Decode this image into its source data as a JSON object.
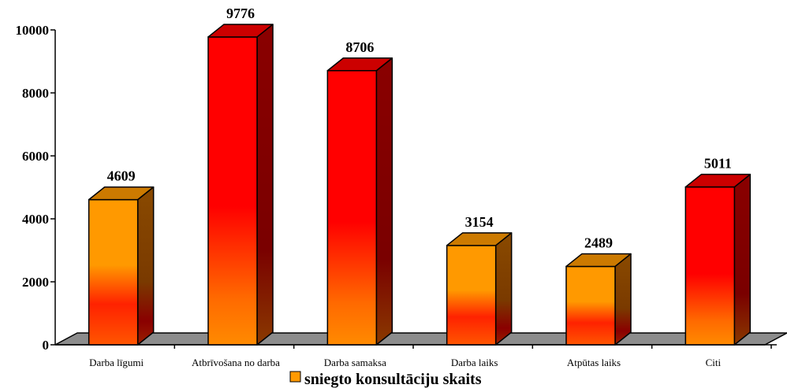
{
  "chart_data": {
    "type": "bar",
    "categories": [
      "Darba līgumi",
      "Atbrīvošana no darba",
      "Darba samaksa",
      "Darba laiks",
      "Atpūtas laiks",
      "Citi"
    ],
    "series": [
      {
        "name": "sniegto konsultāciju skaits",
        "values": [
          4609,
          9776,
          8706,
          3154,
          2489,
          5011
        ]
      }
    ],
    "data_labels": [
      "4609",
      "9776",
      "8706",
      "3154",
      "2489",
      "5011"
    ],
    "y_ticks": [
      "0",
      "2000",
      "4000",
      "6000",
      "8000",
      "10000"
    ],
    "ylim": [
      0,
      10000
    ],
    "legend_position": "bottom",
    "grid": false,
    "style": "3d-column",
    "bar_colors": [
      "#ff9900",
      "#ff0000",
      "#ff0000",
      "#ff9900",
      "#ff9900",
      "#ff0000"
    ],
    "floor_color": "#8c8c8c"
  },
  "legend": {
    "label": "sniegto konsultāciju skaits",
    "swatch_color": "#ff9900"
  }
}
